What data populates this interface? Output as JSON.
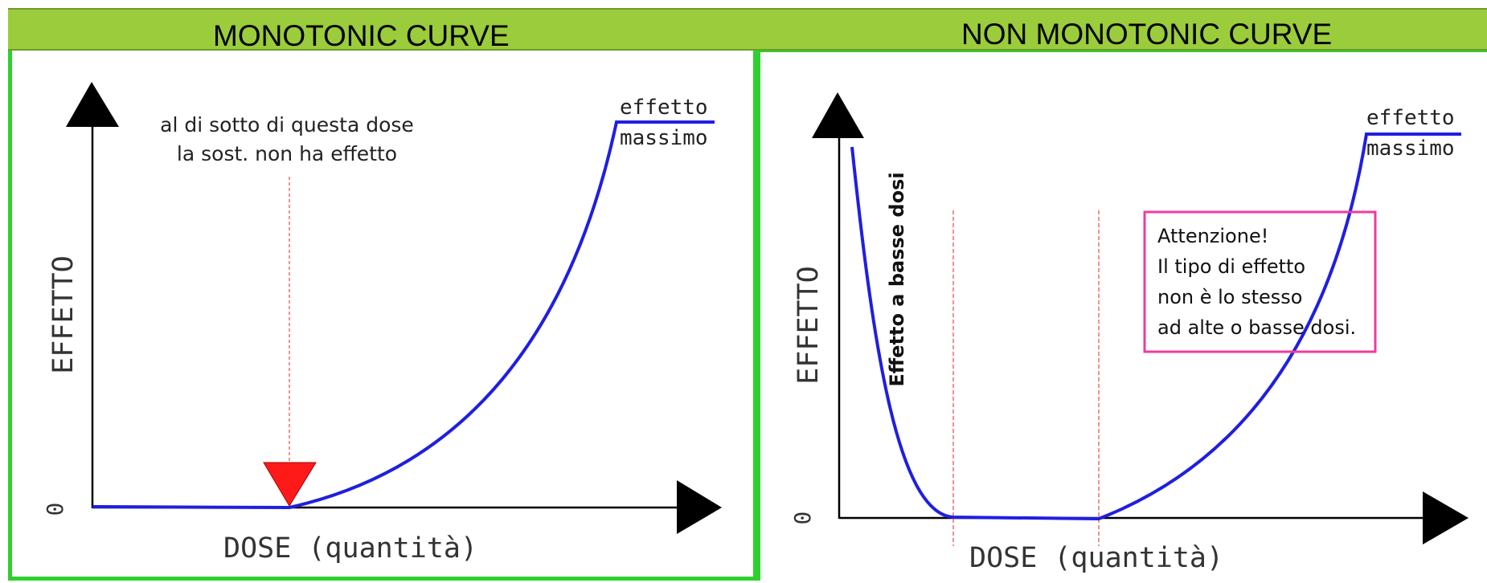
{
  "left_panel": {
    "title": "MONOTONIC CURVE",
    "y_axis_label": "EFFETTO",
    "x_axis_label": "DOSE (quantità)",
    "origin_label": "0",
    "threshold_note_line1": "al di sotto di questa dose",
    "threshold_note_line2": "la sost. non ha effetto",
    "max_label_line1": "effetto",
    "max_label_line2": "massimo"
  },
  "right_panel": {
    "title": "NON MONOTONIC CURVE",
    "y_axis_label": "EFFETTO",
    "x_axis_label": "DOSE (quantità)",
    "origin_label": "0",
    "low_dose_label": "Effetto a basse dosi",
    "max_label_line1": "effetto",
    "max_label_line2": "massimo",
    "warning_lines": [
      "Attenzione!",
      "Il tipo di effetto",
      "non è lo stesso",
      "ad alte o basse dosi."
    ]
  },
  "colors": {
    "header_band": "#9bcc3b",
    "frame_green": "#2dd12d",
    "curve_blue": "#1f1fe0",
    "threshold_red": "#ff1a1a",
    "guide_line_red": "#f26b6b",
    "warning_box_pink": "#ee3b9f",
    "axis_black": "#000000"
  }
}
